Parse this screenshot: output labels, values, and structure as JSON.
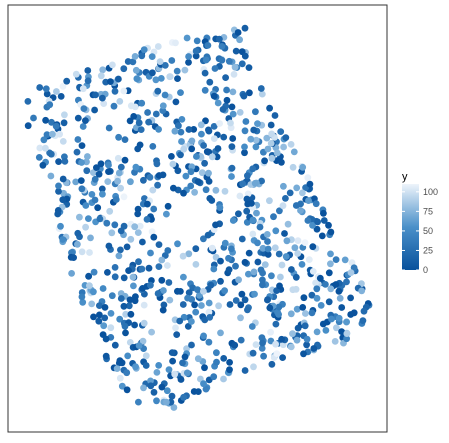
{
  "chart_data": {
    "type": "scatter",
    "title": "",
    "xlabel": "",
    "ylabel": "",
    "axes_visible": false,
    "grid": false,
    "panel_border": true,
    "legend": {
      "position": "right",
      "title": "y",
      "ticks": [
        {
          "value": 0,
          "label": "0"
        },
        {
          "value": 25,
          "label": "25"
        },
        {
          "value": 50,
          "label": "50"
        },
        {
          "value": 75,
          "label": "75"
        },
        {
          "value": 100,
          "label": "100"
        }
      ],
      "range": [
        0,
        110
      ]
    },
    "color_scale": {
      "low": "#08519c",
      "mid": "#4a90c9",
      "high": "#eef4fb"
    },
    "point_color": "#3a7fc2",
    "point_count_approx": 1000
  }
}
